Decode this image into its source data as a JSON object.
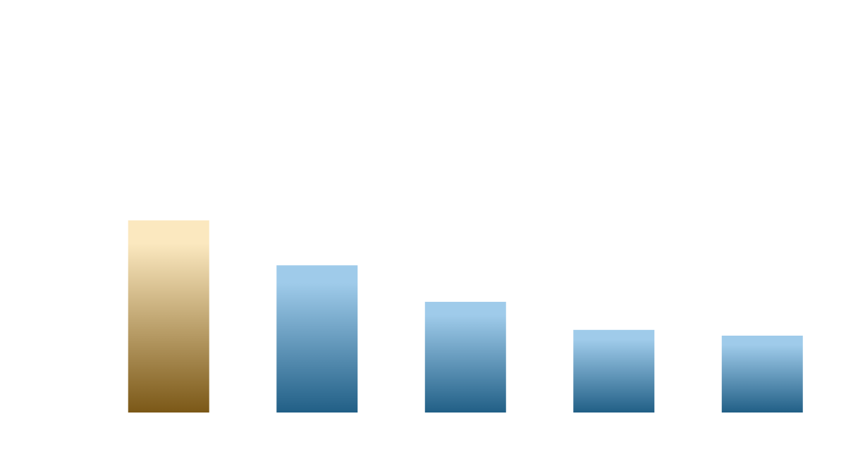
{
  "chart_data": {
    "type": "bar",
    "categories": [
      null,
      null,
      null,
      null,
      null
    ],
    "values": [
      50,
      38.3,
      28.8,
      21.5,
      20
    ],
    "colors": [
      [
        "#fbe8bf",
        "#7b5817"
      ],
      [
        "#9fcbea",
        "#215f86"
      ],
      [
        "#9fcbea",
        "#215f86"
      ],
      [
        "#9fcbea",
        "#215f86"
      ],
      [
        "#9fcbea",
        "#215f86"
      ]
    ],
    "ylim": [
      0,
      100
    ]
  }
}
